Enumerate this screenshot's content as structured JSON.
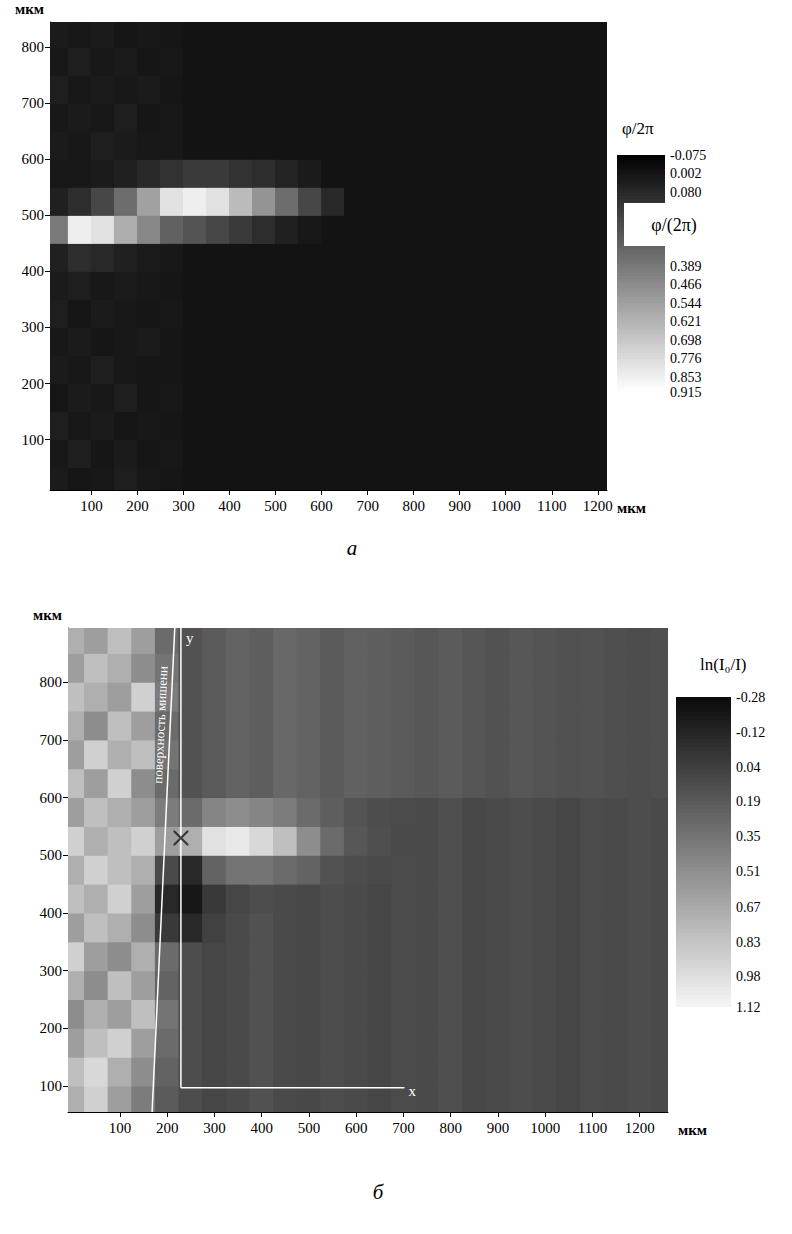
{
  "chart_data": [
    {
      "type": "heatmap",
      "panel": "а",
      "x_label": "мкм",
      "y_label": "мкм",
      "grid": false,
      "xlim": [
        10,
        1220
      ],
      "ylim": [
        10,
        845
      ],
      "xticks": [
        100,
        200,
        300,
        400,
        500,
        600,
        700,
        800,
        900,
        1000,
        1100,
        1200
      ],
      "yticks": [
        100,
        200,
        300,
        400,
        500,
        600,
        700,
        800
      ],
      "x": [
        25,
        75,
        125,
        175,
        225,
        275,
        325,
        375,
        425,
        475,
        525,
        575,
        625,
        675,
        725,
        775,
        825,
        875,
        925,
        975,
        1025,
        1075,
        1125,
        1175,
        1225
      ],
      "y": [
        25,
        75,
        125,
        175,
        225,
        275,
        325,
        375,
        425,
        475,
        525,
        575,
        625,
        675,
        725,
        775,
        825
      ],
      "values": [
        [
          0.03,
          0.01,
          0.02,
          0.04,
          0.02,
          0.01,
          0,
          0,
          0,
          0,
          0,
          0,
          0,
          0,
          0,
          0,
          0,
          0,
          0,
          0,
          0,
          0,
          0,
          0,
          0
        ],
        [
          0.02,
          0.04,
          0.01,
          0.03,
          0.01,
          0.02,
          0,
          0,
          0,
          0,
          0,
          0,
          0,
          0,
          0,
          0,
          0,
          0,
          0,
          0,
          0,
          0,
          0,
          0,
          0
        ],
        [
          0.04,
          0.02,
          0.03,
          0.01,
          0.02,
          0.01,
          0,
          0,
          0,
          0,
          0,
          0,
          0,
          0,
          0,
          0,
          0,
          0,
          0,
          0,
          0,
          0,
          0,
          0,
          0
        ],
        [
          0.01,
          0.03,
          0.02,
          0.04,
          0.01,
          0.02,
          0,
          0,
          0,
          0,
          0,
          0,
          0,
          0,
          0,
          0,
          0,
          0,
          0,
          0,
          0,
          0,
          0,
          0,
          0
        ],
        [
          0.03,
          0.02,
          0.04,
          0.02,
          0.01,
          0.01,
          0,
          0,
          0,
          0,
          0,
          0,
          0,
          0,
          0,
          0,
          0,
          0,
          0,
          0,
          0,
          0,
          0,
          0,
          0
        ],
        [
          0.02,
          0.03,
          0.01,
          0.02,
          0.03,
          0.01,
          0,
          0,
          0,
          0,
          0,
          0,
          0,
          0,
          0,
          0,
          0,
          0,
          0,
          0,
          0,
          0,
          0,
          0,
          0
        ],
        [
          0.04,
          0.01,
          0.03,
          0.02,
          0.01,
          0.02,
          0,
          0,
          0,
          0,
          0,
          0,
          0,
          0,
          0,
          0,
          0,
          0,
          0,
          0,
          0,
          0,
          0,
          0,
          0
        ],
        [
          0.03,
          0.04,
          0.02,
          0.03,
          0.02,
          0.01,
          0,
          0,
          0,
          0,
          0,
          0,
          0,
          0,
          0,
          0,
          0,
          0,
          0,
          0,
          0,
          0,
          0,
          0,
          0
        ],
        [
          0.05,
          0.1,
          0.08,
          0.05,
          0.03,
          0.02,
          0,
          0,
          0,
          0,
          0,
          0,
          0,
          0,
          0,
          0,
          0,
          0,
          0,
          0,
          0,
          0,
          0,
          0,
          0
        ],
        [
          0.4,
          0.85,
          0.8,
          0.6,
          0.45,
          0.3,
          0.25,
          0.2,
          0.15,
          0.1,
          0.05,
          0.02,
          0,
          0,
          0,
          0,
          0,
          0,
          0,
          0,
          0,
          0,
          0,
          0,
          0
        ],
        [
          0.05,
          0.1,
          0.2,
          0.35,
          0.55,
          0.8,
          0.85,
          0.8,
          0.65,
          0.5,
          0.35,
          0.2,
          0.08,
          0,
          0,
          0,
          0,
          0,
          0,
          0,
          0,
          0,
          0,
          0,
          0
        ],
        [
          0.02,
          0.02,
          0.03,
          0.05,
          0.08,
          0.12,
          0.15,
          0.15,
          0.12,
          0.1,
          0.06,
          0.03,
          0,
          0,
          0,
          0,
          0,
          0,
          0,
          0,
          0,
          0,
          0,
          0,
          0
        ],
        [
          0.03,
          0.02,
          0.04,
          0.03,
          0.02,
          0.02,
          0,
          0,
          0,
          0,
          0,
          0,
          0,
          0,
          0,
          0,
          0,
          0,
          0,
          0,
          0,
          0,
          0,
          0,
          0
        ],
        [
          0.02,
          0.03,
          0.02,
          0.04,
          0.01,
          0.02,
          0,
          0,
          0,
          0,
          0,
          0,
          0,
          0,
          0,
          0,
          0,
          0,
          0,
          0,
          0,
          0,
          0,
          0,
          0
        ],
        [
          0.04,
          0.02,
          0.03,
          0.02,
          0.03,
          0.01,
          0,
          0,
          0,
          0,
          0,
          0,
          0,
          0,
          0,
          0,
          0,
          0,
          0,
          0,
          0,
          0,
          0,
          0,
          0
        ],
        [
          0.02,
          0.04,
          0.02,
          0.03,
          0.01,
          0.02,
          0,
          0,
          0,
          0,
          0,
          0,
          0,
          0,
          0,
          0,
          0,
          0,
          0,
          0,
          0,
          0,
          0,
          0,
          0
        ],
        [
          0.03,
          0.02,
          0.03,
          0.01,
          0.02,
          0.01,
          0,
          0,
          0,
          0,
          0,
          0,
          0,
          0,
          0,
          0,
          0,
          0,
          0,
          0,
          0,
          0,
          0,
          0,
          0
        ]
      ],
      "colorbar": {
        "title": "φ/2π",
        "label": "φ/(2π)",
        "range": [
          -0.075,
          0.915
        ],
        "ticks": [
          -0.075,
          0.002,
          {
            "value": 0.08,
            "label": "0.080"
          },
          0.389,
          0.466,
          0.544,
          0.621,
          0.698,
          0.776,
          0.853,
          0.915
        ],
        "colors": [
          "#000000",
          "#ffffff"
        ]
      }
    },
    {
      "type": "heatmap",
      "panel": "б",
      "x_label": "мкм",
      "y_label": "мкм",
      "grid": false,
      "xlim": [
        -10,
        1260
      ],
      "ylim": [
        55,
        894
      ],
      "xticks": [
        100,
        200,
        300,
        400,
        500,
        600,
        700,
        800,
        900,
        1000,
        1100,
        1200
      ],
      "yticks": [
        100,
        200,
        300,
        400,
        500,
        600,
        700,
        800
      ],
      "x": [
        0,
        50,
        100,
        150,
        200,
        250,
        300,
        350,
        400,
        450,
        500,
        550,
        600,
        650,
        700,
        750,
        800,
        850,
        900,
        950,
        1000,
        1050,
        1100,
        1150,
        1200,
        1250
      ],
      "y": [
        75,
        125,
        175,
        225,
        275,
        325,
        375,
        425,
        475,
        525,
        575,
        625,
        675,
        725,
        775,
        825,
        875
      ],
      "values": [
        [
          0.7,
          0.9,
          0.6,
          0.4,
          0.2,
          0.12,
          0.08,
          0.1,
          0.14,
          0.1,
          0.09,
          0.12,
          0.1,
          0.08,
          0.11,
          0.1,
          0.13,
          0.09,
          0.1,
          0.12,
          0.1,
          0.08,
          0.11,
          0.1,
          0.12,
          0.1
        ],
        [
          0.8,
          0.95,
          0.7,
          0.5,
          0.25,
          0.12,
          0.08,
          0.1,
          0.14,
          0.1,
          0.09,
          0.12,
          0.1,
          0.08,
          0.11,
          0.1,
          0.13,
          0.09,
          0.1,
          0.12,
          0.1,
          0.08,
          0.11,
          0.1,
          0.12,
          0.1
        ],
        [
          0.6,
          0.8,
          0.9,
          0.6,
          0.3,
          0.12,
          0.08,
          0.1,
          0.14,
          0.1,
          0.09,
          0.12,
          0.1,
          0.08,
          0.11,
          0.1,
          0.13,
          0.09,
          0.1,
          0.12,
          0.1,
          0.08,
          0.11,
          0.1,
          0.12,
          0.1
        ],
        [
          0.5,
          0.7,
          0.6,
          0.8,
          0.35,
          0.12,
          0.08,
          0.1,
          0.14,
          0.1,
          0.09,
          0.12,
          0.1,
          0.08,
          0.11,
          0.1,
          0.13,
          0.09,
          0.1,
          0.12,
          0.1,
          0.08,
          0.11,
          0.1,
          0.12,
          0.1
        ],
        [
          0.7,
          0.5,
          0.8,
          0.6,
          0.25,
          0.12,
          0.08,
          0.1,
          0.14,
          0.1,
          0.09,
          0.12,
          0.1,
          0.08,
          0.11,
          0.1,
          0.13,
          0.09,
          0.1,
          0.12,
          0.1,
          0.08,
          0.11,
          0.1,
          0.12,
          0.1
        ],
        [
          0.9,
          0.6,
          0.5,
          0.7,
          0.3,
          0.12,
          0.08,
          0.1,
          0.14,
          0.1,
          0.09,
          0.12,
          0.1,
          0.08,
          0.11,
          0.1,
          0.13,
          0.09,
          0.1,
          0.12,
          0.1,
          0.08,
          0.11,
          0.1,
          0.12,
          0.1
        ],
        [
          0.6,
          0.8,
          0.7,
          0.5,
          0.0,
          -0.1,
          0.05,
          0.1,
          0.14,
          0.1,
          0.09,
          0.12,
          0.1,
          0.08,
          0.11,
          0.1,
          0.13,
          0.09,
          0.1,
          0.12,
          0.1,
          0.08,
          0.11,
          0.1,
          0.12,
          0.1
        ],
        [
          0.8,
          0.7,
          0.9,
          0.6,
          -0.1,
          -0.2,
          0.0,
          0.08,
          0.12,
          0.1,
          0.09,
          0.12,
          0.1,
          0.08,
          0.11,
          0.1,
          0.13,
          0.09,
          0.1,
          0.12,
          0.1,
          0.08,
          0.11,
          0.1,
          0.12,
          0.1
        ],
        [
          0.7,
          0.9,
          0.8,
          0.7,
          0.1,
          -0.1,
          0.25,
          0.35,
          0.35,
          0.3,
          0.25,
          0.15,
          0.12,
          0.1,
          0.11,
          0.1,
          0.13,
          0.09,
          0.1,
          0.12,
          0.1,
          0.08,
          0.11,
          0.1,
          0.12,
          0.1
        ],
        [
          0.9,
          0.7,
          0.8,
          0.9,
          0.6,
          0.7,
          1.0,
          1.05,
          0.95,
          0.8,
          0.5,
          0.3,
          0.18,
          0.13,
          0.1,
          0.1,
          0.13,
          0.09,
          0.1,
          0.12,
          0.1,
          0.08,
          0.11,
          0.1,
          0.12,
          0.1
        ],
        [
          0.6,
          0.8,
          0.7,
          0.6,
          0.4,
          0.3,
          0.45,
          0.5,
          0.45,
          0.4,
          0.3,
          0.22,
          0.16,
          0.12,
          0.11,
          0.1,
          0.13,
          0.09,
          0.1,
          0.12,
          0.1,
          0.08,
          0.11,
          0.1,
          0.12,
          0.1
        ],
        [
          0.8,
          0.6,
          0.9,
          0.5,
          0.3,
          0.15,
          0.2,
          0.25,
          0.22,
          0.28,
          0.25,
          0.2,
          0.24,
          0.22,
          0.2,
          0.18,
          0.2,
          0.17,
          0.15,
          0.18,
          0.16,
          0.14,
          0.15,
          0.13,
          0.12,
          0.13
        ],
        [
          0.6,
          0.9,
          0.7,
          0.8,
          0.35,
          0.15,
          0.2,
          0.25,
          0.22,
          0.28,
          0.25,
          0.2,
          0.24,
          0.22,
          0.2,
          0.18,
          0.2,
          0.17,
          0.15,
          0.18,
          0.16,
          0.14,
          0.15,
          0.13,
          0.12,
          0.13
        ],
        [
          0.7,
          0.5,
          0.8,
          0.6,
          0.3,
          0.15,
          0.2,
          0.25,
          0.22,
          0.28,
          0.25,
          0.2,
          0.24,
          0.22,
          0.2,
          0.18,
          0.2,
          0.17,
          0.15,
          0.18,
          0.16,
          0.14,
          0.15,
          0.13,
          0.12,
          0.13
        ],
        [
          0.8,
          0.7,
          0.6,
          0.9,
          0.4,
          0.15,
          0.2,
          0.25,
          0.22,
          0.28,
          0.25,
          0.2,
          0.24,
          0.22,
          0.2,
          0.18,
          0.2,
          0.17,
          0.15,
          0.18,
          0.16,
          0.14,
          0.15,
          0.13,
          0.12,
          0.13
        ],
        [
          0.6,
          0.8,
          0.7,
          0.5,
          0.35,
          0.15,
          0.2,
          0.25,
          0.22,
          0.28,
          0.25,
          0.2,
          0.24,
          0.22,
          0.2,
          0.18,
          0.2,
          0.17,
          0.15,
          0.18,
          0.16,
          0.14,
          0.15,
          0.13,
          0.12,
          0.13
        ],
        [
          0.7,
          0.6,
          0.8,
          0.6,
          0.3,
          0.15,
          0.2,
          0.25,
          0.22,
          0.28,
          0.25,
          0.2,
          0.24,
          0.22,
          0.2,
          0.18,
          0.2,
          0.17,
          0.15,
          0.18,
          0.16,
          0.14,
          0.15,
          0.13,
          0.12,
          0.13
        ]
      ],
      "colorbar": {
        "title": "ln(I₀/I)",
        "range": [
          -0.28,
          1.12
        ],
        "ticks": [
          -0.28,
          -0.12,
          0.04,
          0.19,
          0.35,
          0.51,
          0.67,
          0.83,
          0.98,
          1.12
        ],
        "colors": [
          "#0a0a0a",
          "#f5f5f5"
        ]
      },
      "annotations": [
        {
          "text": "поверхность мишени",
          "line": [
            [
              168,
              55
            ],
            [
              216,
              894
            ]
          ]
        },
        {
          "text": "y",
          "line": [
            [
              229,
              97
            ],
            [
              229,
              894
            ]
          ]
        },
        {
          "text": "x",
          "line": [
            [
              229,
              97
            ],
            [
              702,
              97
            ]
          ]
        }
      ],
      "points": [
        {
          "x": 229,
          "y": 530,
          "marker": "cross"
        }
      ]
    }
  ]
}
